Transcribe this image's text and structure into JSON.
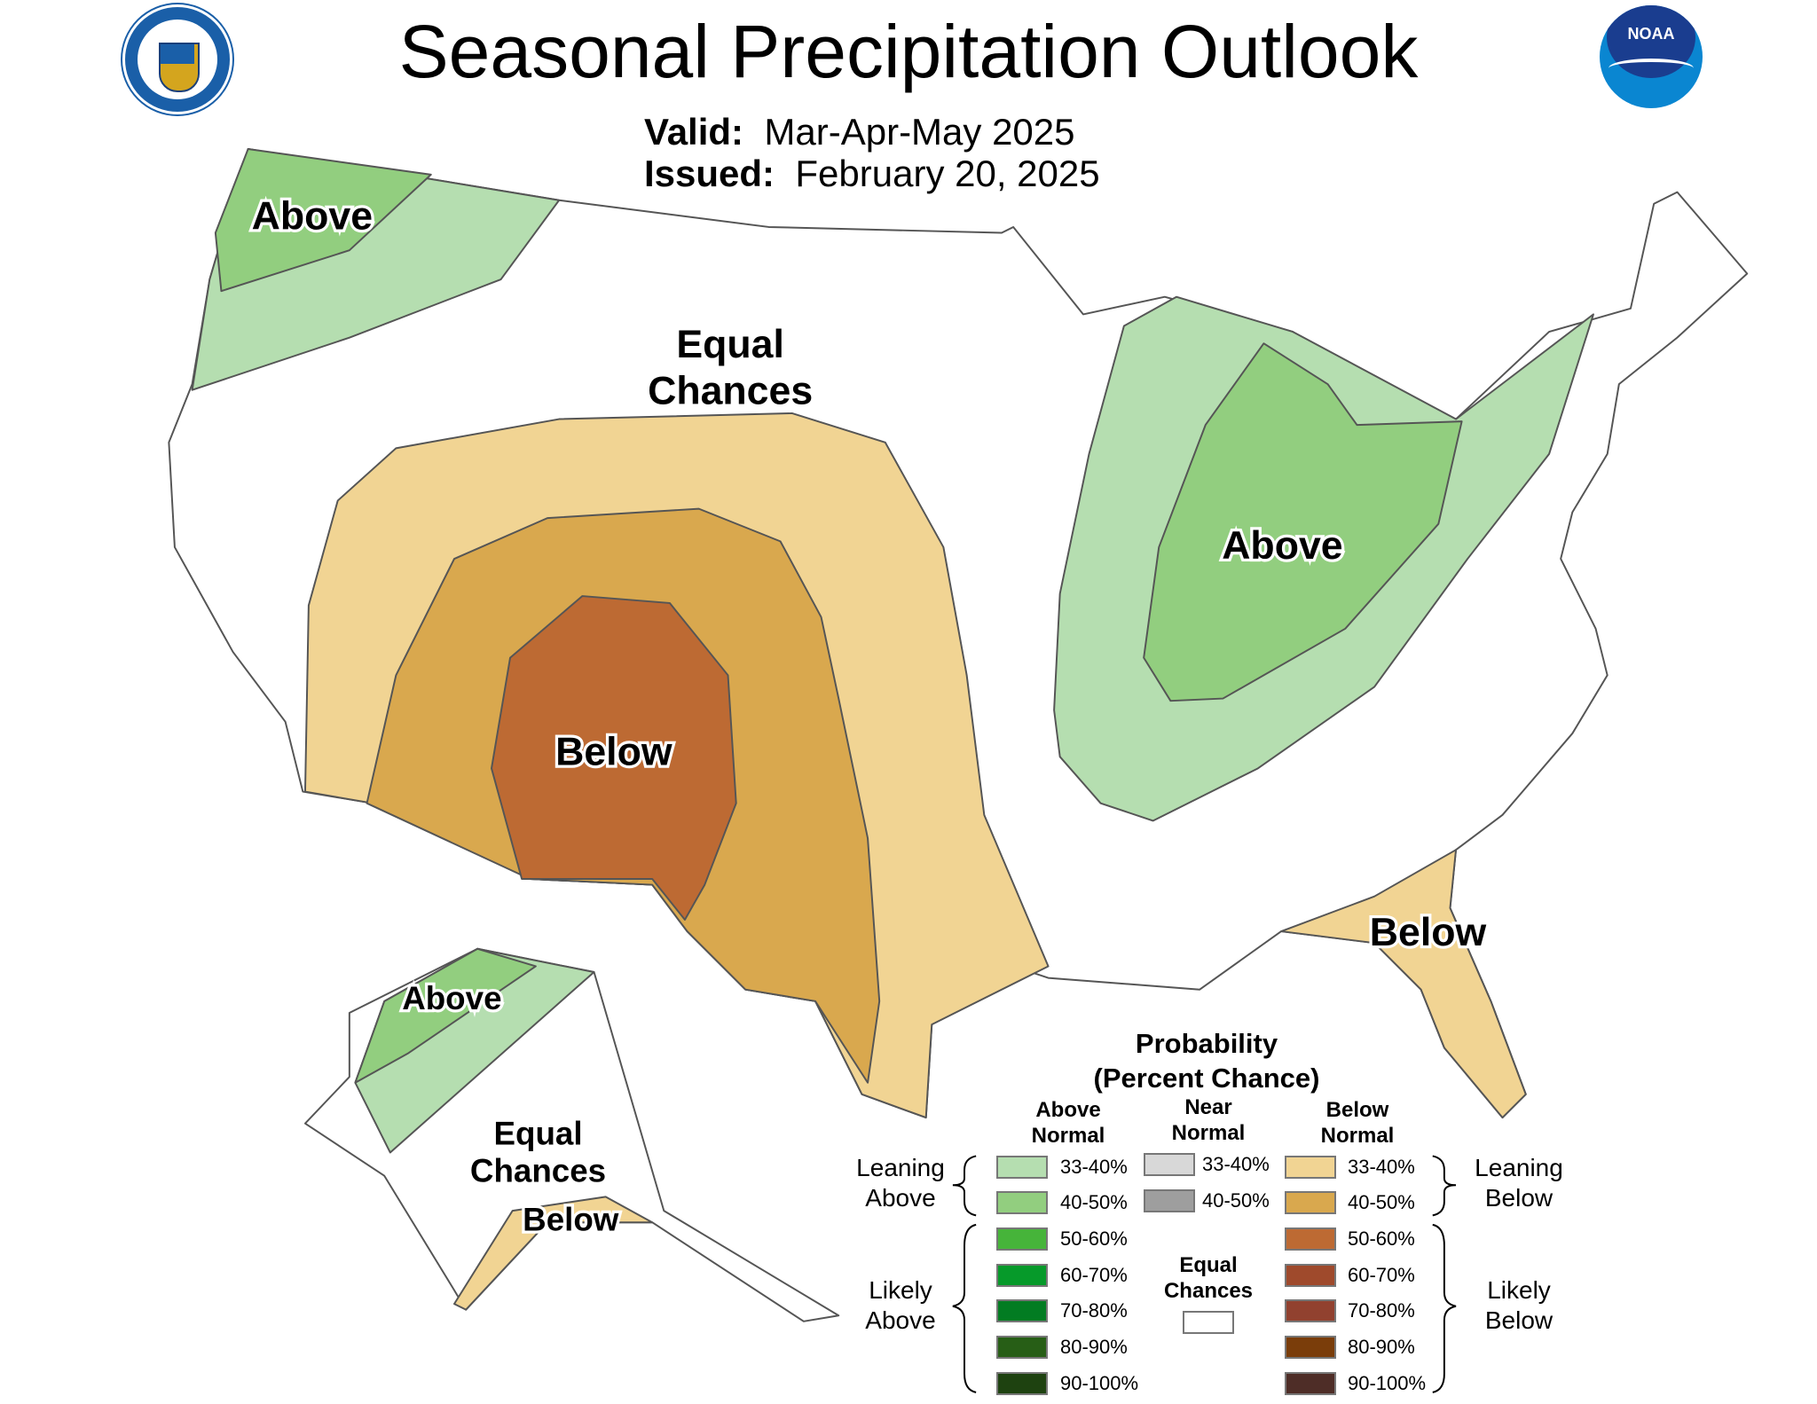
{
  "header": {
    "title": "Seasonal Precipitation Outlook",
    "valid_label": "Valid:",
    "valid_value": "Mar-Apr-May 2025",
    "issued_label": "Issued:",
    "issued_value": "February 20, 2025",
    "left_logo": "department-of-commerce-seal",
    "right_logo": "noaa-logo",
    "right_logo_text": "NOAA"
  },
  "map": {
    "labels": {
      "nw_above": "Above",
      "central_ec_1": "Equal",
      "central_ec_2": "Chances",
      "sw_below": "Below",
      "east_above": "Above",
      "fl_below": "Below",
      "ak_above": "Above",
      "ak_ec_1": "Equal",
      "ak_ec_2": "Chances",
      "ak_below": "Below"
    },
    "colors": {
      "above_33_40": "#b5deb0",
      "above_40_50": "#92ce7f",
      "below_33_40": "#f1d493",
      "below_40_50": "#d9a84e",
      "below_50_60": "#bd6a33",
      "boundary": "#555555"
    }
  },
  "legend": {
    "title_1": "Probability",
    "title_2": "(Percent Chance)",
    "col_above_1": "Above",
    "col_above_2": "Normal",
    "col_near_1": "Near",
    "col_near_2": "Normal",
    "col_below_1": "Below",
    "col_below_2": "Normal",
    "leaning_above_1": "Leaning",
    "leaning_above_2": "Above",
    "likely_above_1": "Likely",
    "likely_above_2": "Above",
    "leaning_below_1": "Leaning",
    "leaning_below_2": "Below",
    "likely_below_1": "Likely",
    "likely_below_2": "Below",
    "equal_1": "Equal",
    "equal_2": "Chances",
    "above": [
      {
        "label": "33-40%",
        "color": "#b5deb0"
      },
      {
        "label": "40-50%",
        "color": "#92ce7f"
      },
      {
        "label": "50-60%",
        "color": "#46b43a"
      },
      {
        "label": "60-70%",
        "color": "#069a2a"
      },
      {
        "label": "70-80%",
        "color": "#027c22"
      },
      {
        "label": "80-90%",
        "color": "#275e16"
      },
      {
        "label": "90-100%",
        "color": "#1e4210"
      }
    ],
    "near": [
      {
        "label": "33-40%",
        "color": "#d8d8d8"
      },
      {
        "label": "40-50%",
        "color": "#9e9e9e"
      }
    ],
    "below": [
      {
        "label": "33-40%",
        "color": "#f1d493"
      },
      {
        "label": "40-50%",
        "color": "#d9a84e"
      },
      {
        "label": "50-60%",
        "color": "#bd6a33"
      },
      {
        "label": "60-70%",
        "color": "#9f4a2c"
      },
      {
        "label": "70-80%",
        "color": "#91412f"
      },
      {
        "label": "80-90%",
        "color": "#7a3d0a"
      },
      {
        "label": "90-100%",
        "color": "#4e2d27"
      }
    ],
    "equal_color": "#ffffff"
  }
}
